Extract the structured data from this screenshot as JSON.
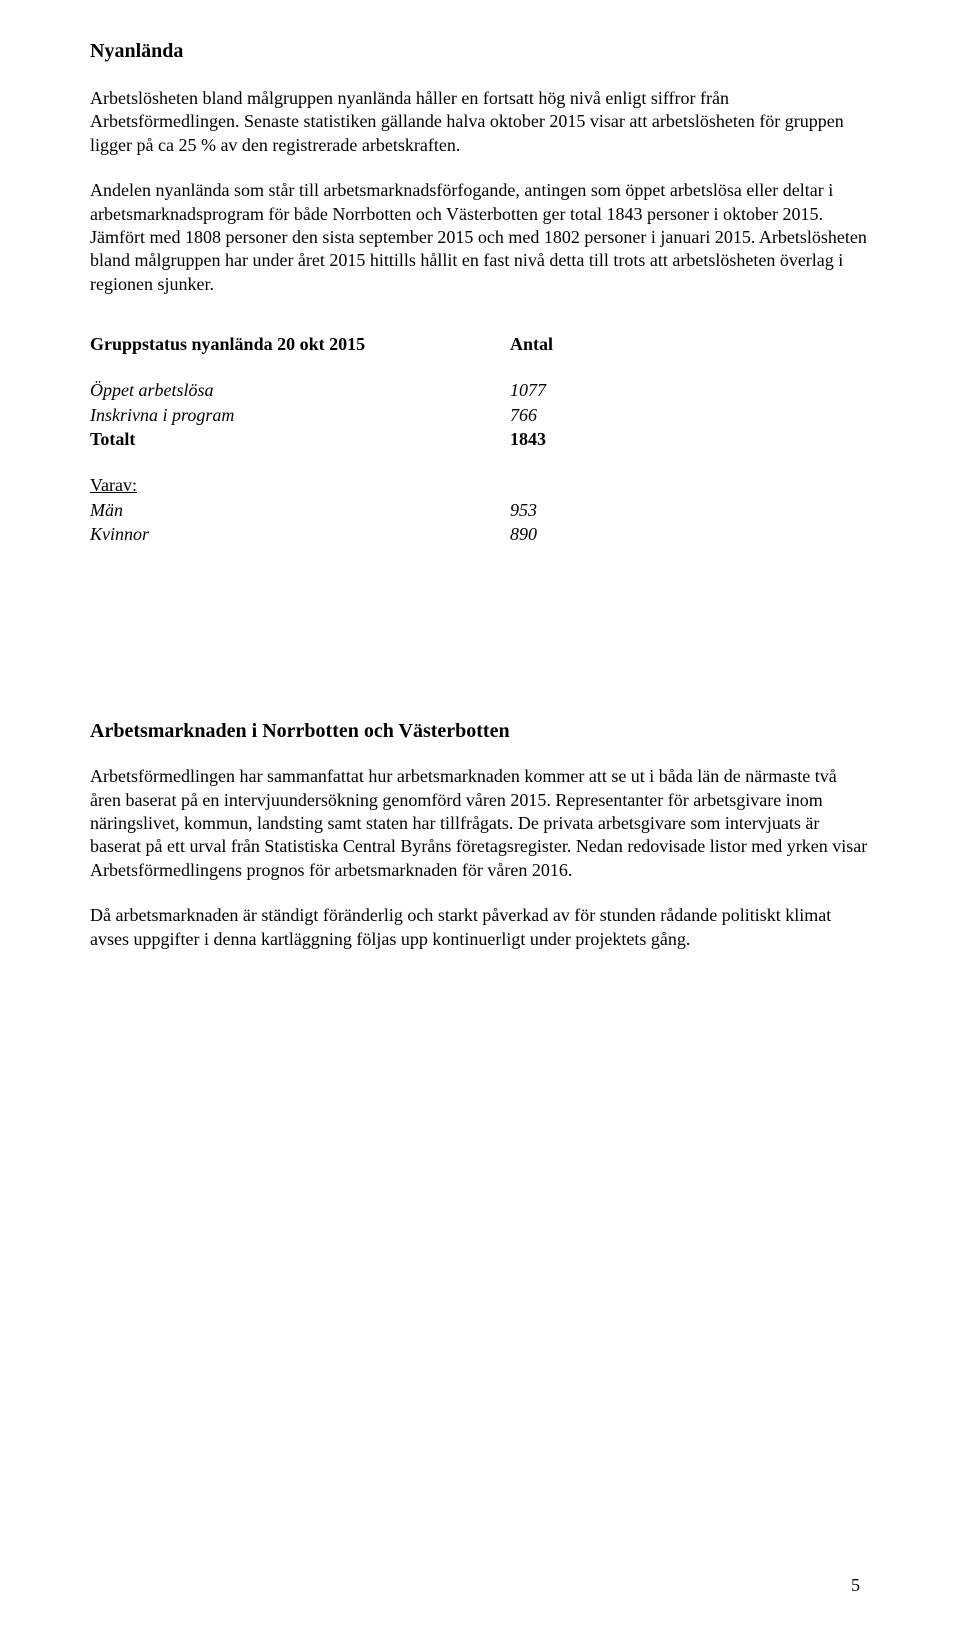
{
  "section1": {
    "heading": "Nyanlända",
    "para1": "Arbetslösheten bland målgruppen nyanlända håller en fortsatt hög nivå enligt siffror från Arbetsförmedlingen. Senaste statistiken gällande halva oktober 2015 visar att arbetslösheten för gruppen ligger på ca 25 % av den registrerade arbetskraften.",
    "para2": "Andelen nyanlända som står till arbetsmarknadsförfogande, antingen som öppet arbetslösa eller deltar i arbetsmarknadsprogram för både Norrbotten och Västerbotten ger total 1843 personer i oktober 2015. Jämfört med 1808 personer den sista september 2015 och med 1802 personer i januari 2015. Arbetslösheten bland målgruppen har under året 2015 hittills hållit en fast nivå detta till trots att arbetslösheten överlag i regionen sjunker."
  },
  "table": {
    "header_label": "Gruppstatus nyanlända 20 okt 2015",
    "header_value": "Antal",
    "rows": [
      {
        "label": "Öppet arbetslösa",
        "value": "1077",
        "style": "italic"
      },
      {
        "label": "Inskrivna i program",
        "value": "766",
        "style": "italic"
      },
      {
        "label": "Totalt",
        "value": "1843",
        "style": "bold"
      }
    ],
    "varav_label": "Varav:",
    "sub_rows": [
      {
        "label": "Män",
        "value": "953"
      },
      {
        "label": "Kvinnor",
        "value": "890"
      }
    ]
  },
  "section2": {
    "heading": "Arbetsmarknaden i Norrbotten och Västerbotten",
    "para1": "Arbetsförmedlingen har sammanfattat hur arbetsmarknaden kommer att se ut i båda län de närmaste två åren baserat på en intervjuundersökning genomförd våren 2015. Representanter för arbetsgivare inom näringslivet, kommun, landsting samt staten har tillfrågats. De privata arbetsgivare som intervjuats är baserat på ett urval från Statistiska Central Byråns företagsregister. Nedan redovisade listor med yrken visar Arbetsförmedlingens prognos för arbetsmarknaden för våren 2016.",
    "para2": "Då arbetsmarknaden är ständigt föränderlig och starkt påverkad av för stunden rådande politiskt klimat avses uppgifter i denna kartläggning följas upp kontinuerligt under projektets gång."
  },
  "page_number": "5"
}
